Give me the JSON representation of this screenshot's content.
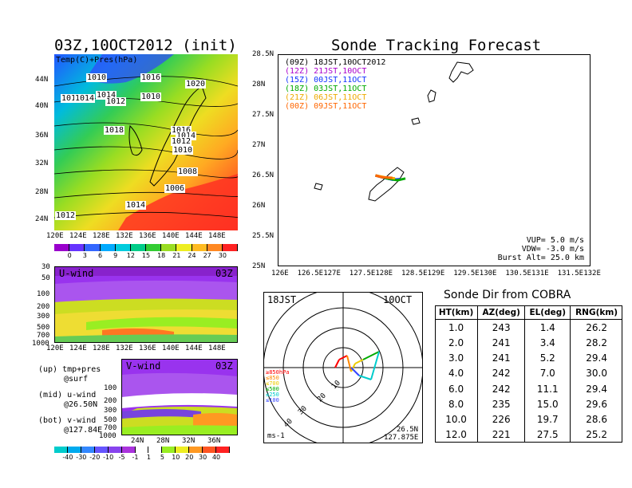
{
  "left": {
    "map_title": "03Z,10OCT2012 (init)",
    "map_label": "Temp(C)+Pres(hPa)",
    "map_lat_ticks": [
      "44N",
      "40N",
      "36N",
      "32N",
      "28N",
      "24N"
    ],
    "map_lon_ticks": [
      "120E",
      "124E",
      "128E",
      "132E",
      "136E",
      "140E",
      "144E",
      "148E"
    ],
    "isobar_labels": [
      "1010",
      "1016",
      "1020",
      "1016",
      "1014",
      "1010",
      "1014",
      "1012",
      "1018",
      "1016",
      "1014",
      "1012",
      "1010",
      "1008",
      "1006",
      "1014",
      "1012"
    ],
    "temp_colorbar": [
      "0",
      "3",
      "6",
      "9",
      "12",
      "15",
      "18",
      "21",
      "24",
      "27",
      "30"
    ],
    "temp_colorbar_colors": [
      "#9900cc",
      "#6633ff",
      "#3366ff",
      "#00aaff",
      "#00ccdd",
      "#00cc88",
      "#33cc33",
      "#99dd22",
      "#eeee22",
      "#ffbb22",
      "#ff8822",
      "#ff2222"
    ],
    "uwind_label": "U-wind",
    "uwind_time": "03Z",
    "press_ticks": [
      "30",
      "50",
      "100",
      "200",
      "300",
      "500",
      "700",
      "1000"
    ],
    "uwind_lon_ticks": [
      "120E",
      "124E",
      "128E",
      "132E",
      "136E",
      "140E",
      "144E",
      "148E"
    ],
    "vwind_label": "V-wind",
    "vwind_time": "03Z",
    "vwind_lat_ticks": [
      "24N",
      "28N",
      "32N",
      "36N"
    ],
    "legend_up": "(up) tmp+pres",
    "legend_up2": "@surf",
    "legend_mid": "(mid) u-wind",
    "legend_mid2": "@26.50N",
    "legend_bot": "(bot) v-wind",
    "legend_bot2": "@127.84E",
    "wind_colorbar": [
      "-40",
      "-30",
      "-20",
      "-10",
      "-5",
      "-1",
      "1",
      "5",
      "10",
      "20",
      "30",
      "40"
    ],
    "wind_colorbar_colors": [
      "#00cccc",
      "#00aaee",
      "#3388ff",
      "#6655ff",
      "#8844ee",
      "#aa33dd",
      "#ffffff",
      "#ffffff",
      "#99ee22",
      "#eeee22",
      "#ff9922",
      "#ff5522",
      "#ff2222"
    ]
  },
  "forecast": {
    "title": "Sonde Tracking Forecast",
    "lat_ticks": [
      "28.5N",
      "28N",
      "27.5N",
      "27N",
      "26.5N",
      "26N",
      "25.5N",
      "25N"
    ],
    "lon_ticks": [
      "126E",
      "126.5E",
      "127E",
      "127.5E",
      "128E",
      "128.5E",
      "129E",
      "129.5E",
      "130E",
      "130.5E",
      "131E",
      "131.5E",
      "132E"
    ],
    "legend": [
      {
        "text": "(09Z) 18JST,10OCT2012",
        "color": "#000000"
      },
      {
        "text": "(12Z) 21JST,10OCT",
        "color": "#aa00cc"
      },
      {
        "text": "(15Z) 00JST,11OCT",
        "color": "#1133ff"
      },
      {
        "text": "(18Z) 03JST,11OCT",
        "color": "#00aa00"
      },
      {
        "text": "(21Z) 06JST,11OCT",
        "color": "#eeaa00"
      },
      {
        "text": "(00Z) 09JST,11OCT",
        "color": "#ff6600"
      }
    ],
    "vup": "VUP= 5.0 m/s",
    "vdw": "VDW= -3.0 m/s",
    "burst": "Burst Alt= 25.0 km"
  },
  "polar": {
    "time_label": "18JST",
    "date_label": "10OCT",
    "unit_label": "ms-1",
    "lat": "26.5N",
    "lon": "127.875E",
    "ring_labels": [
      "10",
      "20",
      "30",
      "40"
    ],
    "level_legend": [
      {
        "text": "≥850hPa",
        "color": "#ff0000"
      },
      {
        "text": "≤850",
        "color": "#ff8800"
      },
      {
        "text": "≤700",
        "color": "#eecc00"
      },
      {
        "text": "≤500",
        "color": "#00aa00"
      },
      {
        "text": "≤250",
        "color": "#00cccc"
      },
      {
        "text": "≤100",
        "color": "#3344ff"
      }
    ]
  },
  "table": {
    "title": "Sonde Dir from COBRA",
    "headers": [
      "HT(km)",
      "AZ(deg)",
      "EL(deg)",
      "RNG(km)"
    ],
    "rows": [
      [
        "1.0",
        "243",
        "1.4",
        "26.2"
      ],
      [
        "2.0",
        "241",
        "3.4",
        "28.2"
      ],
      [
        "3.0",
        "241",
        "5.2",
        "29.4"
      ],
      [
        "4.0",
        "242",
        "7.0",
        "30.0"
      ],
      [
        "6.0",
        "242",
        "11.1",
        "29.4"
      ],
      [
        "8.0",
        "235",
        "15.0",
        "29.6"
      ],
      [
        "10.0",
        "226",
        "19.7",
        "28.6"
      ],
      [
        "12.0",
        "221",
        "27.5",
        "25.2"
      ]
    ]
  },
  "chart_data": [
    {
      "type": "heatmap",
      "title": "03Z,10OCT2012 (init)",
      "subtitle": "Temp(C)+Pres(hPa)",
      "x_ticks": [
        "120E",
        "124E",
        "128E",
        "132E",
        "136E",
        "140E",
        "144E",
        "148E"
      ],
      "y_ticks": [
        "24N",
        "28N",
        "32N",
        "36N",
        "40N",
        "44N"
      ],
      "colorbar_levels": [
        0,
        3,
        6,
        9,
        12,
        15,
        18,
        21,
        24,
        27,
        30
      ],
      "contour_labels": [
        1010,
        1016,
        1020,
        1016,
        1014,
        1010,
        1014,
        1012,
        1018,
        1016,
        1014,
        1012,
        1010,
        1008,
        1006,
        1014,
        1012
      ]
    },
    {
      "type": "heatmap",
      "title": "U-wind",
      "x_ticks": [
        "120E",
        "124E",
        "128E",
        "132E",
        "136E",
        "140E",
        "144E",
        "148E"
      ],
      "y_ticks": [
        30,
        50,
        100,
        200,
        300,
        500,
        700,
        1000
      ],
      "y_scale": "log"
    },
    {
      "type": "heatmap",
      "title": "V-wind",
      "x_ticks": [
        "24N",
        "28N",
        "32N",
        "36N"
      ],
      "y_ticks": [
        100,
        200,
        300,
        500,
        700,
        1000
      ],
      "y_scale": "log",
      "colorbar_levels": [
        -40,
        -30,
        -20,
        -10,
        -5,
        -1,
        1,
        5,
        10,
        20,
        30,
        40
      ]
    },
    {
      "type": "line",
      "title": "Sonde Tracking Forecast",
      "xlim": [
        126,
        132
      ],
      "ylim": [
        25,
        28.5
      ],
      "series": [
        {
          "name": "(09Z) 18JST,10OCT2012",
          "x": [
            127.875,
            128.0,
            128.1,
            128.15
          ],
          "y": [
            26.5,
            26.47,
            26.45,
            26.44
          ]
        },
        {
          "name": "(12Z) 21JST,10OCT",
          "x": [
            127.875,
            128.0,
            128.15,
            128.3
          ],
          "y": [
            26.5,
            26.47,
            26.44,
            26.43
          ]
        },
        {
          "name": "(15Z) 00JST,11OCT",
          "x": [
            127.875,
            128.05,
            128.2,
            128.35
          ],
          "y": [
            26.5,
            26.46,
            26.43,
            26.44
          ]
        },
        {
          "name": "(18Z) 03JST,11OCT",
          "x": [
            127.875,
            128.1,
            128.3,
            128.45
          ],
          "y": [
            26.5,
            26.45,
            26.42,
            26.45
          ]
        },
        {
          "name": "(21Z) 06JST,11OCT",
          "x": [
            127.875,
            128.05,
            128.25
          ],
          "y": [
            26.5,
            26.47,
            26.45
          ]
        },
        {
          "name": "(00Z) 09JST,11OCT",
          "x": [
            127.875,
            128.0,
            128.2
          ],
          "y": [
            26.5,
            26.47,
            26.46
          ]
        }
      ]
    },
    {
      "type": "scatter",
      "title": "18JST 10OCT",
      "ring_labels": [
        10,
        20,
        30,
        40
      ],
      "unit": "ms-1",
      "hodograph_uv": [
        [
          -2,
          0
        ],
        [
          -1,
          2
        ],
        [
          1,
          3
        ],
        [
          2,
          -1
        ],
        [
          3,
          1
        ],
        [
          5,
          2
        ],
        [
          9,
          4
        ],
        [
          7,
          -3
        ],
        [
          4,
          -2
        ],
        [
          2,
          0
        ]
      ]
    },
    {
      "type": "table",
      "title": "Sonde Dir from COBRA",
      "columns": [
        "HT(km)",
        "AZ(deg)",
        "EL(deg)",
        "RNG(km)"
      ],
      "rows": [
        [
          1.0,
          243,
          1.4,
          26.2
        ],
        [
          2.0,
          241,
          3.4,
          28.2
        ],
        [
          3.0,
          241,
          5.2,
          29.4
        ],
        [
          4.0,
          242,
          7.0,
          30.0
        ],
        [
          6.0,
          242,
          11.1,
          29.4
        ],
        [
          8.0,
          235,
          15.0,
          29.6
        ],
        [
          10.0,
          226,
          19.7,
          28.6
        ],
        [
          12.0,
          221,
          27.5,
          25.2
        ]
      ]
    }
  ]
}
